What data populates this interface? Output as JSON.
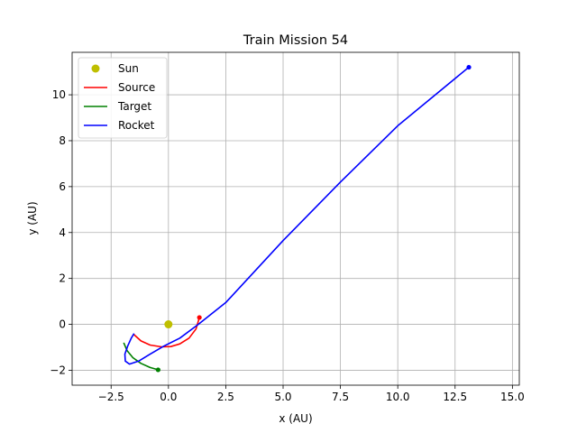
{
  "chart_data": {
    "type": "line",
    "title": "Train Mission 54",
    "xlabel": "x (AU)",
    "ylabel": "y (AU)",
    "xlim": [
      -4.2,
      15.3
    ],
    "ylim": [
      -2.65,
      11.85
    ],
    "xticks": [
      -2.5,
      0.0,
      2.5,
      5.0,
      7.5,
      10.0,
      12.5,
      15.0
    ],
    "xtick_labels": [
      "−2.5",
      "0.0",
      "2.5",
      "5.0",
      "7.5",
      "10.0",
      "12.5",
      "15.0"
    ],
    "yticks": [
      -2,
      0,
      2,
      4,
      6,
      8,
      10
    ],
    "ytick_labels": [
      "−2",
      "0",
      "2",
      "4",
      "6",
      "8",
      "10"
    ],
    "grid": true,
    "legend_position": "top-left",
    "sun": {
      "name": "Sun",
      "x": 0.0,
      "y": 0.0,
      "color": "#bfbf00"
    },
    "series": [
      {
        "name": "Source",
        "color": "#ff0000",
        "points": [
          [
            -1.5,
            -0.45
          ],
          [
            -1.2,
            -0.72
          ],
          [
            -0.8,
            -0.9
          ],
          [
            -0.3,
            -0.98
          ],
          [
            0.1,
            -0.97
          ],
          [
            0.5,
            -0.85
          ],
          [
            0.9,
            -0.6
          ],
          [
            1.2,
            -0.2
          ],
          [
            1.35,
            0.3
          ]
        ],
        "end_marker": [
          1.35,
          0.3
        ]
      },
      {
        "name": "Target",
        "color": "#008000",
        "points": [
          [
            -1.95,
            -0.8
          ],
          [
            -1.8,
            -1.15
          ],
          [
            -1.55,
            -1.45
          ],
          [
            -1.2,
            -1.7
          ],
          [
            -0.8,
            -1.88
          ],
          [
            -0.45,
            -1.98
          ]
        ],
        "end_marker": [
          -0.45,
          -1.98
        ]
      },
      {
        "name": "Rocket",
        "color": "#0000ff",
        "points": [
          [
            -1.5,
            -0.4
          ],
          [
            -1.62,
            -0.6
          ],
          [
            -1.78,
            -0.95
          ],
          [
            -1.9,
            -1.3
          ],
          [
            -1.88,
            -1.6
          ],
          [
            -1.7,
            -1.73
          ],
          [
            -1.3,
            -1.6
          ],
          [
            -0.8,
            -1.3
          ],
          [
            -0.2,
            -0.95
          ],
          [
            0.5,
            -0.6
          ],
          [
            1.3,
            0.0
          ],
          [
            2.5,
            0.95
          ],
          [
            5.0,
            3.65
          ],
          [
            7.5,
            6.2
          ],
          [
            10.0,
            8.65
          ],
          [
            13.1,
            11.2
          ]
        ],
        "end_marker": [
          13.1,
          11.2
        ]
      }
    ]
  }
}
